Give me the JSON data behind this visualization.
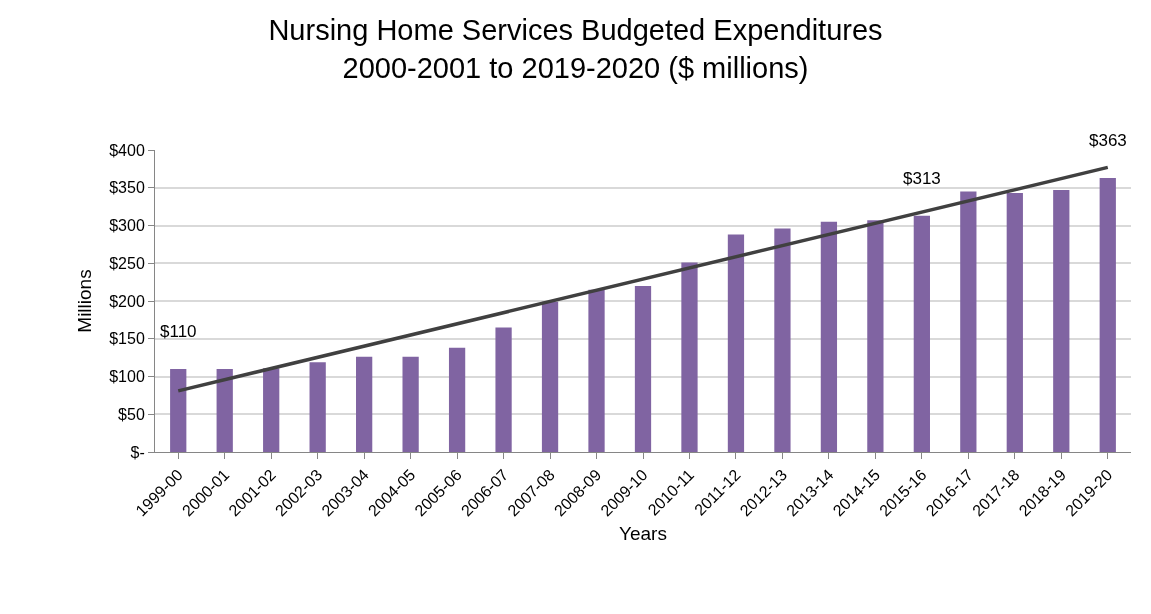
{
  "chart_data": {
    "type": "bar",
    "title": "Nursing Home Services Budgeted Expenditures\n2000-2001 to 2019-2020 ($ millions)",
    "xlabel": "Years",
    "ylabel": "Millions",
    "categories": [
      "1999-00",
      "2000-01",
      "2001-02",
      "2002-03",
      "2003-04",
      "2004-05",
      "2005-06",
      "2006-07",
      "2007-08",
      "2008-09",
      "2009-10",
      "2010-11",
      "2011-12",
      "2012-13",
      "2013-14",
      "2014-15",
      "2015-16",
      "2016-17",
      "2017-18",
      "2018-19",
      "2019-20"
    ],
    "series": [
      {
        "color": "#8064a2",
        "values": [
          110,
          110,
          111,
          119,
          126,
          126,
          138,
          165,
          199,
          215,
          220,
          251,
          288,
          296,
          305,
          307,
          313,
          345,
          343,
          347,
          363
        ],
        "value_labels": [
          "$110",
          null,
          null,
          null,
          null,
          null,
          null,
          null,
          null,
          null,
          null,
          null,
          null,
          null,
          null,
          null,
          "$313",
          null,
          null,
          null,
          "$363"
        ]
      },
      {
        "type": "line",
        "color": "#404040",
        "x": [
          "1999-00",
          "2019-20"
        ],
        "values": [
          81,
          377
        ]
      }
    ],
    "ylim": [
      0,
      400
    ],
    "yticks": [
      {
        "value": 0,
        "label": "$-"
      },
      {
        "value": 50,
        "label": "$50"
      },
      {
        "value": 100,
        "label": "$100"
      },
      {
        "value": 150,
        "label": "$150"
      },
      {
        "value": 200,
        "label": "$200"
      },
      {
        "value": 250,
        "label": "$250"
      },
      {
        "value": 300,
        "label": "$300"
      },
      {
        "value": 350,
        "label": "$350"
      },
      {
        "value": 400,
        "label": "$400"
      }
    ],
    "grid": "y",
    "legend": false
  }
}
